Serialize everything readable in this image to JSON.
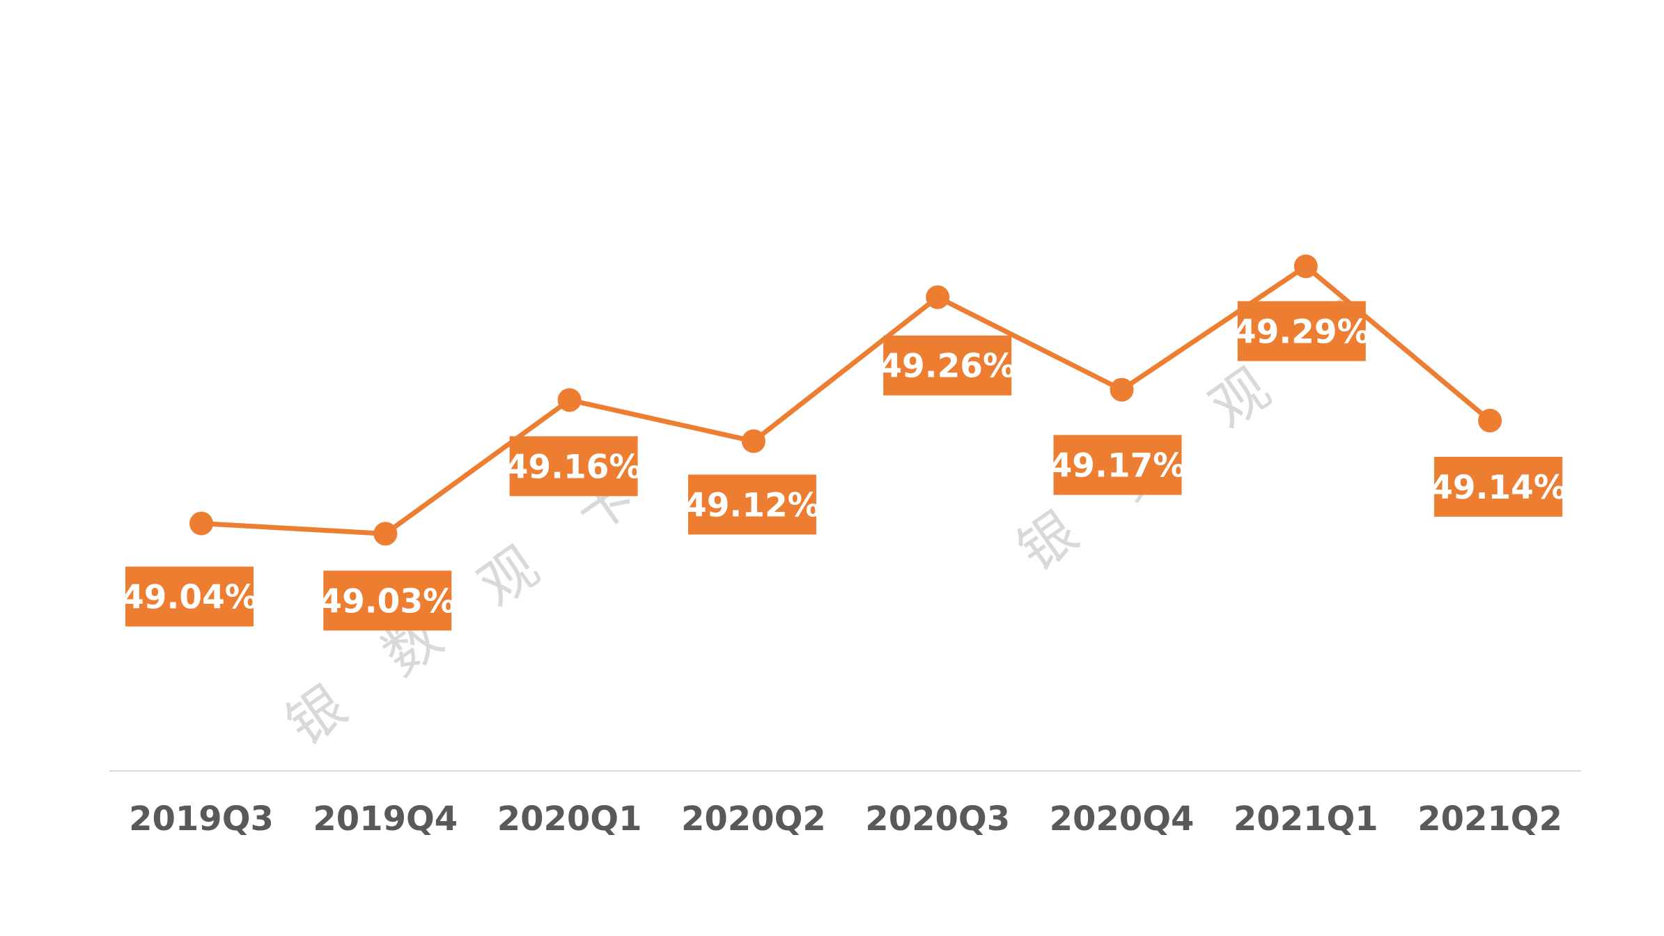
{
  "chart_data": {
    "type": "line",
    "categories": [
      "2019Q3",
      "2019Q4",
      "2020Q1",
      "2020Q2",
      "2020Q3",
      "2020Q4",
      "2021Q1",
      "2021Q2"
    ],
    "series": [
      {
        "values": [
          49.04,
          49.03,
          49.16,
          49.12,
          49.26,
          49.17,
          49.29,
          49.14
        ],
        "labels": [
          "49.04%",
          "49.03%",
          "49.16%",
          "49.12%",
          "49.26%",
          "49.17%",
          "49.29%",
          "49.14%"
        ],
        "color": "#ED7D31"
      }
    ],
    "ylim": [
      48.8,
      49.4
    ],
    "grid": false,
    "legend": "none",
    "axis_color": "#D9D9D9",
    "tick_color": "#595959"
  },
  "watermarks": [
    {
      "chars": [
        "银",
        "数",
        "观",
        "卡"
      ]
    },
    {
      "chars": [
        "银",
        "数",
        "观",
        "卡"
      ]
    }
  ]
}
